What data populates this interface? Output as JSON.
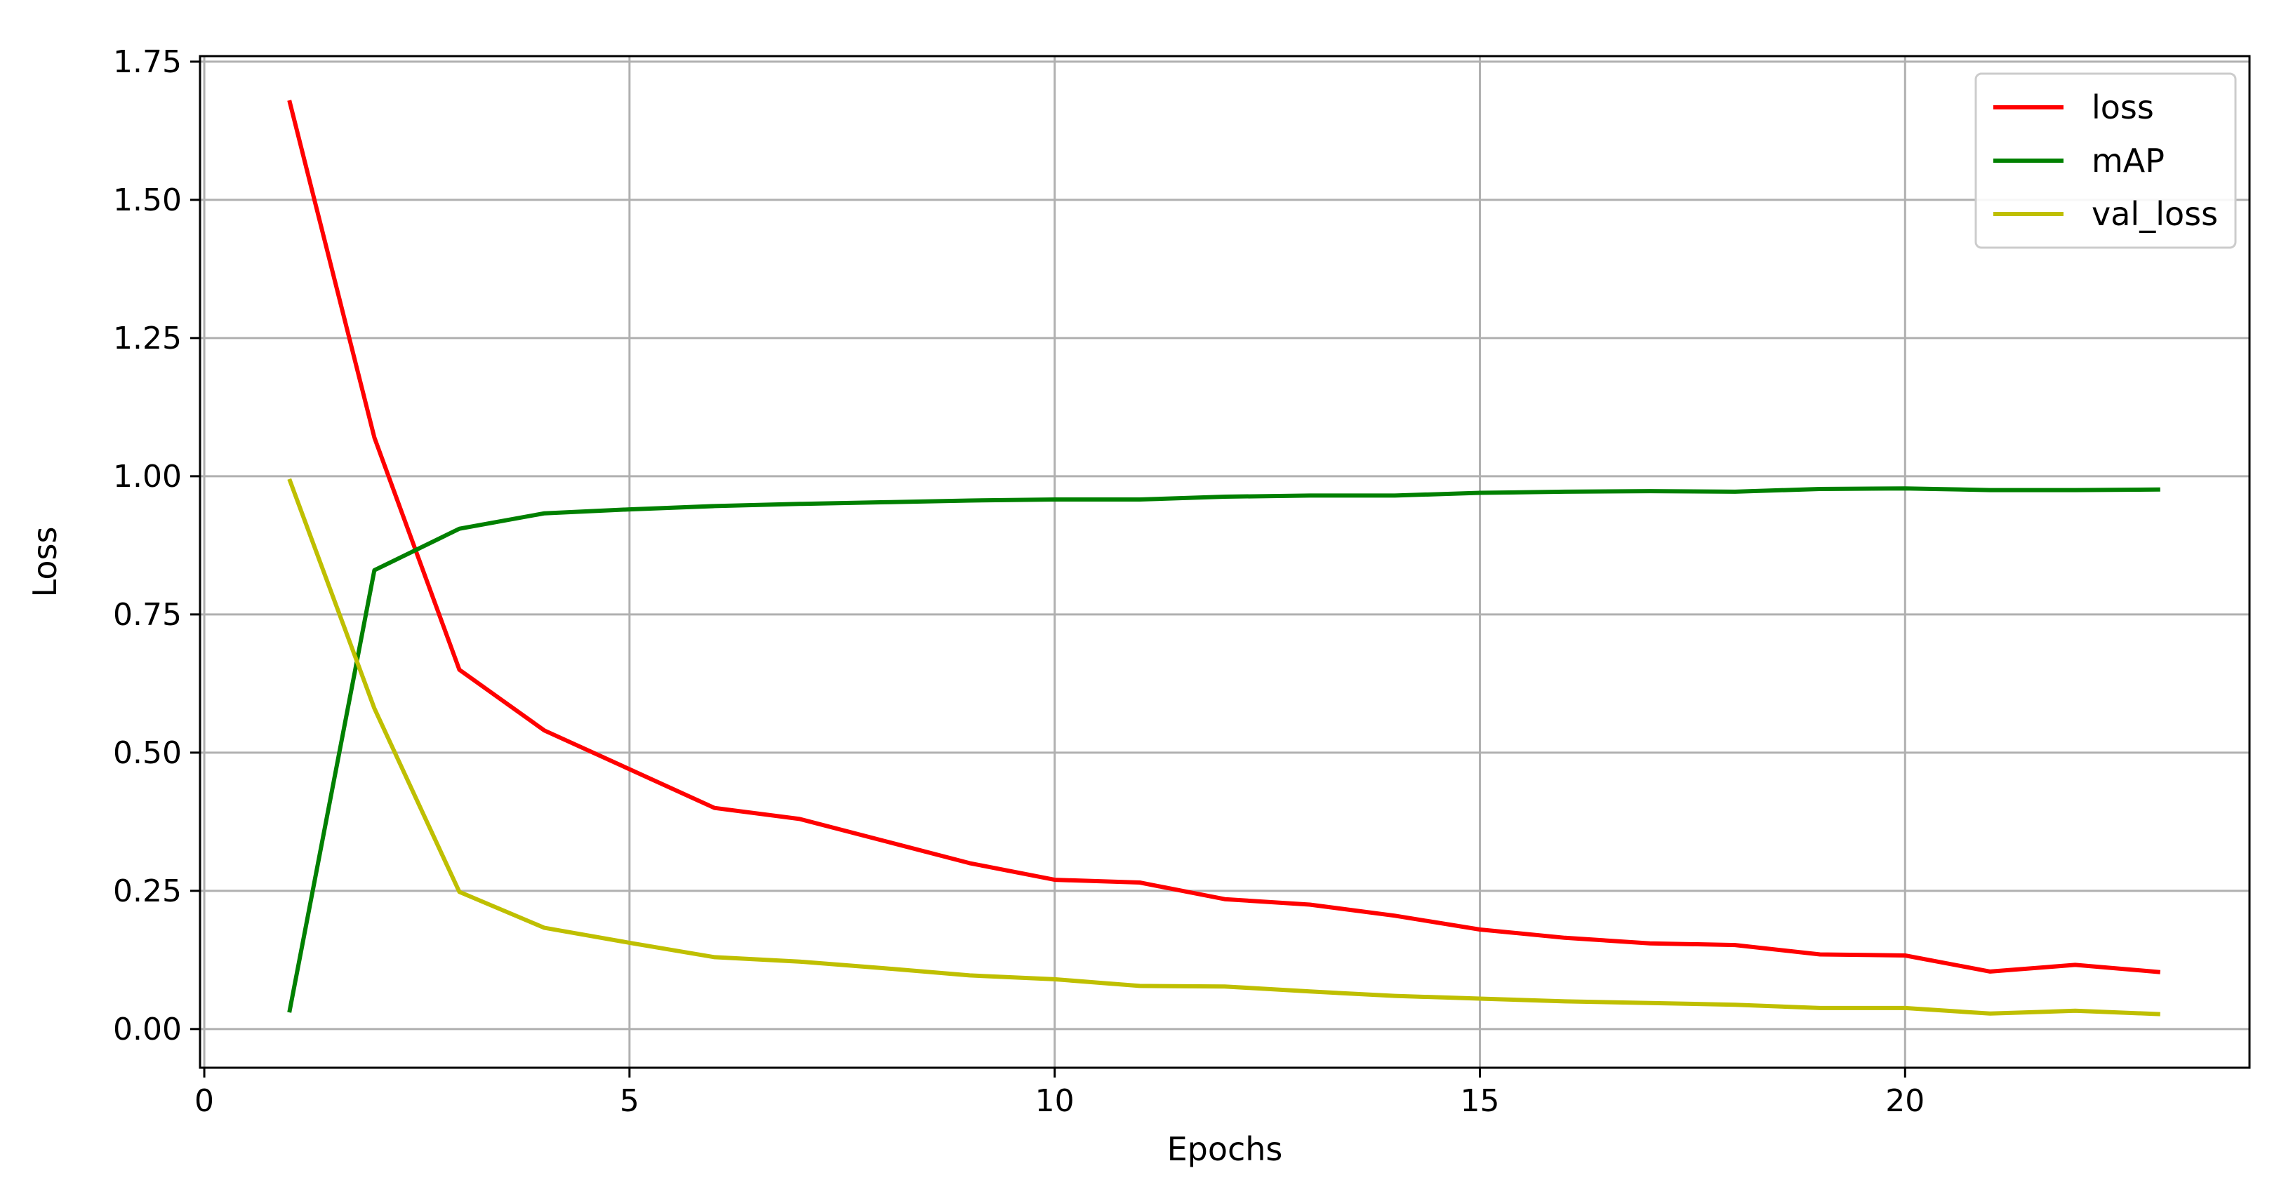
{
  "chart_data": {
    "type": "line",
    "title": "",
    "xlabel": "Epochs",
    "ylabel": "Loss",
    "xlim": [
      -0.05,
      24.05
    ],
    "ylim": [
      -0.07,
      1.76
    ],
    "xticks": [
      0,
      5,
      10,
      15,
      20
    ],
    "yticks": [
      0.0,
      0.25,
      0.5,
      0.75,
      1.0,
      1.25,
      1.5,
      1.75
    ],
    "ytick_labels": [
      "0.00",
      "0.25",
      "0.50",
      "0.75",
      "1.00",
      "1.25",
      "1.50",
      "1.75"
    ],
    "grid": true,
    "legend_position": "top-right",
    "x": [
      1,
      2,
      3,
      4,
      5,
      6,
      7,
      8,
      9,
      10,
      11,
      12,
      13,
      14,
      15,
      16,
      17,
      18,
      19,
      20,
      21,
      22,
      23
    ],
    "series": [
      {
        "name": "loss",
        "color": "#ff0000",
        "values": [
          1.68,
          1.07,
          0.65,
          0.54,
          0.47,
          0.4,
          0.38,
          0.34,
          0.3,
          0.27,
          0.265,
          0.235,
          0.225,
          0.205,
          0.18,
          0.165,
          0.155,
          0.152,
          0.135,
          0.133,
          0.104,
          0.116,
          0.103
        ]
      },
      {
        "name": "mAP",
        "color": "#008000",
        "values": [
          0.03,
          0.83,
          0.905,
          0.933,
          0.94,
          0.946,
          0.95,
          0.953,
          0.956,
          0.958,
          0.958,
          0.963,
          0.965,
          0.965,
          0.97,
          0.972,
          0.973,
          0.972,
          0.977,
          0.978,
          0.975,
          0.975,
          0.976
        ]
      },
      {
        "name": "val_loss",
        "color": "#bfbf00",
        "values": [
          0.995,
          0.58,
          0.248,
          0.183,
          0.156,
          0.13,
          0.122,
          0.11,
          0.097,
          0.09,
          0.078,
          0.077,
          0.068,
          0.06,
          0.055,
          0.05,
          0.047,
          0.044,
          0.038,
          0.038,
          0.028,
          0.033,
          0.027
        ]
      }
    ]
  }
}
